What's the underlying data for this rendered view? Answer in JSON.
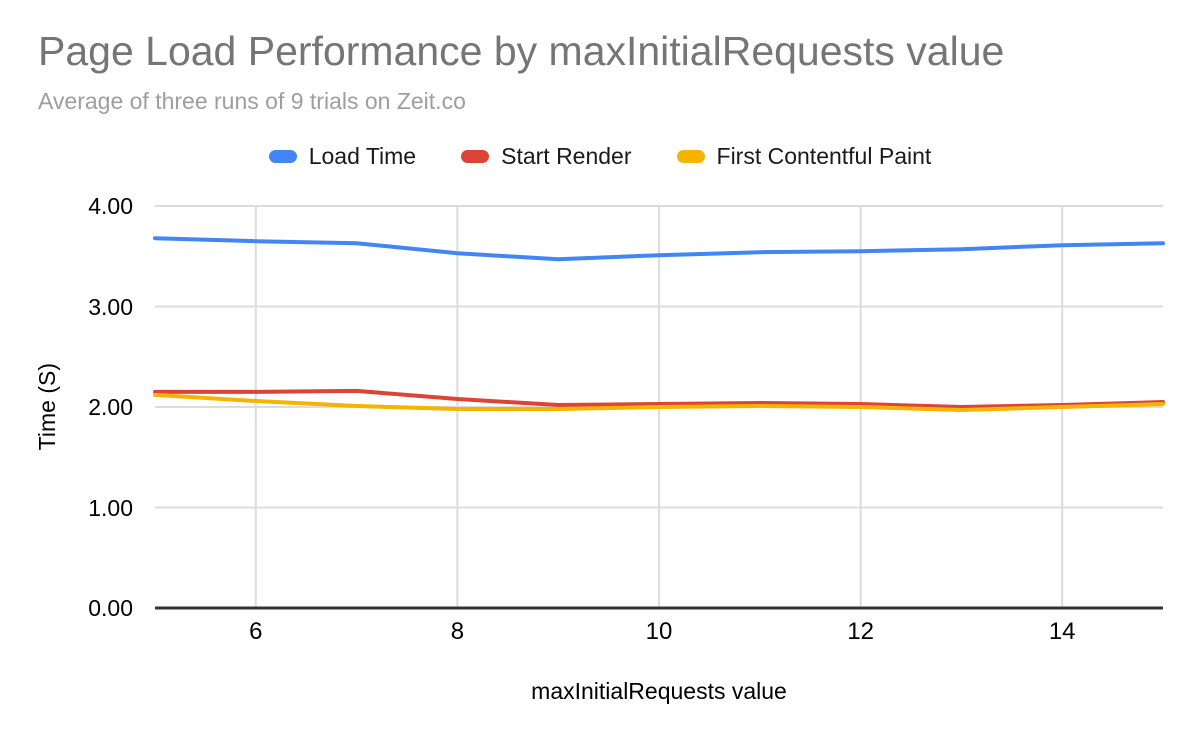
{
  "chart": {
    "title": "Page Load Performance by maxInitialRequests value",
    "subtitle": "Average of three runs of 9 trials on Zeit.co",
    "xlabel": "maxInitialRequests value",
    "ylabel": "Time (S)"
  },
  "chart_data": {
    "type": "line",
    "title": "Page Load Performance by maxInitialRequests value",
    "subtitle": "Average of three runs of 9 trials on Zeit.co",
    "xlabel": "maxInitialRequests value",
    "ylabel": "Time (S)",
    "legend_position": "top",
    "grid": true,
    "x": [
      5,
      6,
      7,
      8,
      9,
      10,
      11,
      12,
      13,
      14,
      15
    ],
    "series": [
      {
        "name": "Load Time",
        "color": "#4285F4",
        "values": [
          3.68,
          3.65,
          3.63,
          3.53,
          3.47,
          3.51,
          3.54,
          3.55,
          3.57,
          3.61,
          3.63
        ]
      },
      {
        "name": "Start Render",
        "color": "#DB4437",
        "values": [
          2.15,
          2.15,
          2.16,
          2.08,
          2.02,
          2.03,
          2.04,
          2.03,
          2.0,
          2.02,
          2.05
        ]
      },
      {
        "name": "First Contentful Paint",
        "color": "#F4B400",
        "values": [
          2.12,
          2.06,
          2.01,
          1.98,
          1.98,
          2.0,
          2.01,
          2.0,
          1.97,
          2.0,
          2.03
        ]
      }
    ],
    "xlim": [
      5,
      15
    ],
    "ylim": [
      0,
      4
    ],
    "xticks": [
      6,
      8,
      10,
      12,
      14
    ],
    "yticks": [
      {
        "value": 0,
        "label": "0.00"
      },
      {
        "value": 1,
        "label": "1.00"
      },
      {
        "value": 2,
        "label": "2.00"
      },
      {
        "value": 3,
        "label": "3.00"
      },
      {
        "value": 4,
        "label": "4.00"
      }
    ],
    "colors": {
      "background": "#ffffff",
      "title_text": "#757575",
      "subtitle_text": "#9e9e9e",
      "tick_text": "#000000",
      "gridline": "#dcdcdc",
      "axis_line": "#333333"
    }
  }
}
